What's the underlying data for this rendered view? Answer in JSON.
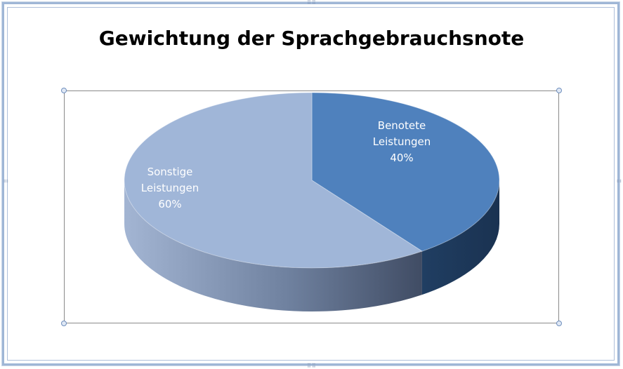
{
  "chart_data": {
    "type": "pie",
    "three_d": true,
    "title": "Gewichtung der Sprachgebrauchsnote",
    "slices": [
      {
        "label_lines": [
          "Benotete",
          "Leistungen",
          "40%"
        ],
        "value": 40,
        "color": "#4f81bd",
        "side_color": "#1e3a5f"
      },
      {
        "label_lines": [
          "Sonstige",
          "Leistungen",
          "60%"
        ],
        "value": 60,
        "color": "#a0b6d8",
        "side_color": "#6d7f9c"
      }
    ],
    "label_color_light": "#ffffff"
  }
}
